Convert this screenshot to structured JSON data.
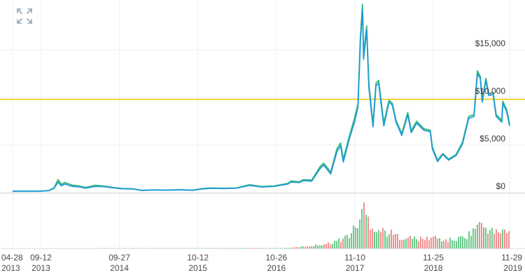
{
  "chart_data": {
    "type": "line",
    "title": "",
    "xlabel": "",
    "ylabel": "",
    "y_ticks": [
      {
        "value": 0,
        "label": "$0"
      },
      {
        "value": 5000,
        "label": "$5,000"
      },
      {
        "value": 10000,
        "label": "$10,000"
      },
      {
        "value": 15000,
        "label": "$15,000"
      }
    ],
    "ylim": [
      0,
      19500
    ],
    "x_range": [
      "2013-04-28",
      "2019-11-29"
    ],
    "x_ticks": [
      {
        "date": "2013-04-28",
        "label1": "04-28",
        "label2": "2013"
      },
      {
        "date": "2013-09-12",
        "label1": "09-12",
        "label2": "2013"
      },
      {
        "date": "2014-09-27",
        "label1": "09-27",
        "label2": "2014"
      },
      {
        "date": "2015-10-12",
        "label1": "10-12",
        "label2": "2015"
      },
      {
        "date": "2016-10-26",
        "label1": "10-26",
        "label2": "2016"
      },
      {
        "date": "2017-11-10",
        "label1": "11-10",
        "label2": "2017"
      },
      {
        "date": "2018-11-25",
        "label1": "11-25",
        "label2": "2018"
      },
      {
        "date": "2019-11-29",
        "label1": "11-29",
        "label2": "2019"
      }
    ],
    "reference_line": {
      "value": 9800,
      "color": "#f2d33b"
    },
    "grid": true,
    "series": [
      {
        "color": "#1e9bd7",
        "points": [
          [
            "2013-04-28",
            130
          ],
          [
            "2013-09-01",
            135
          ],
          [
            "2013-10-20",
            190
          ],
          [
            "2013-11-15",
            450
          ],
          [
            "2013-12-04",
            1100
          ],
          [
            "2013-12-20",
            700
          ],
          [
            "2014-01-05",
            900
          ],
          [
            "2014-02-10",
            650
          ],
          [
            "2014-03-15",
            600
          ],
          [
            "2014-04-15",
            450
          ],
          [
            "2014-06-01",
            650
          ],
          [
            "2014-07-15",
            620
          ],
          [
            "2014-09-01",
            480
          ],
          [
            "2014-10-15",
            390
          ],
          [
            "2014-12-01",
            370
          ],
          [
            "2015-01-15",
            210
          ],
          [
            "2015-03-15",
            270
          ],
          [
            "2015-05-15",
            240
          ],
          [
            "2015-07-15",
            280
          ],
          [
            "2015-09-15",
            230
          ],
          [
            "2015-11-05",
            380
          ],
          [
            "2015-12-15",
            440
          ],
          [
            "2016-02-15",
            420
          ],
          [
            "2016-04-15",
            450
          ],
          [
            "2016-06-18",
            750
          ],
          [
            "2016-08-15",
            580
          ],
          [
            "2016-10-15",
            640
          ],
          [
            "2016-12-20",
            880
          ],
          [
            "2017-01-04",
            1100
          ],
          [
            "2017-02-15",
            1050
          ],
          [
            "2017-03-05",
            1250
          ],
          [
            "2017-04-15",
            1200
          ],
          [
            "2017-05-25",
            2500
          ],
          [
            "2017-06-12",
            2900
          ],
          [
            "2017-07-16",
            1950
          ],
          [
            "2017-08-15",
            4300
          ],
          [
            "2017-09-02",
            4900
          ],
          [
            "2017-09-15",
            3200
          ],
          [
            "2017-10-15",
            5700
          ],
          [
            "2017-11-08",
            7400
          ],
          [
            "2017-11-25",
            9000
          ],
          [
            "2017-12-07",
            16000
          ],
          [
            "2017-12-17",
            19200
          ],
          [
            "2017-12-22",
            14000
          ],
          [
            "2018-01-06",
            17100
          ],
          [
            "2018-01-17",
            11000
          ],
          [
            "2018-02-06",
            6900
          ],
          [
            "2018-02-20",
            11200
          ],
          [
            "2018-03-05",
            11500
          ],
          [
            "2018-03-30",
            7000
          ],
          [
            "2018-04-24",
            9500
          ],
          [
            "2018-05-10",
            9200
          ],
          [
            "2018-05-28",
            7400
          ],
          [
            "2018-06-25",
            6000
          ],
          [
            "2018-07-24",
            8200
          ],
          [
            "2018-08-10",
            6300
          ],
          [
            "2018-09-05",
            7300
          ],
          [
            "2018-10-10",
            6550
          ],
          [
            "2018-11-10",
            6400
          ],
          [
            "2018-11-20",
            4600
          ],
          [
            "2018-12-15",
            3250
          ],
          [
            "2019-01-10",
            4000
          ],
          [
            "2019-02-07",
            3400
          ],
          [
            "2019-03-15",
            3900
          ],
          [
            "2019-04-15",
            5100
          ],
          [
            "2019-05-15",
            7800
          ],
          [
            "2019-06-10",
            8000
          ],
          [
            "2019-06-26",
            12500
          ],
          [
            "2019-07-10",
            12000
          ],
          [
            "2019-07-20",
            9500
          ],
          [
            "2019-08-06",
            11800
          ],
          [
            "2019-08-20",
            10200
          ],
          [
            "2019-09-10",
            10300
          ],
          [
            "2019-09-25",
            8000
          ],
          [
            "2019-10-22",
            7400
          ],
          [
            "2019-10-27",
            9400
          ],
          [
            "2019-11-15",
            8500
          ],
          [
            "2019-11-29",
            7000
          ]
        ]
      },
      {
        "color": "#3cba74",
        "points": [
          [
            "2013-04-28",
            130
          ],
          [
            "2013-09-01",
            140
          ],
          [
            "2013-10-20",
            200
          ],
          [
            "2013-11-15",
            500
          ],
          [
            "2013-12-04",
            1350
          ],
          [
            "2013-12-20",
            850
          ],
          [
            "2014-01-05",
            1050
          ],
          [
            "2014-02-10",
            780
          ],
          [
            "2014-03-15",
            700
          ],
          [
            "2014-04-15",
            520
          ],
          [
            "2014-06-01",
            760
          ],
          [
            "2014-07-15",
            680
          ],
          [
            "2014-09-01",
            520
          ],
          [
            "2014-10-15",
            420
          ],
          [
            "2014-12-01",
            390
          ],
          [
            "2015-01-15",
            230
          ],
          [
            "2015-03-15",
            290
          ],
          [
            "2015-05-15",
            250
          ],
          [
            "2015-07-15",
            300
          ],
          [
            "2015-09-15",
            245
          ],
          [
            "2015-11-05",
            420
          ],
          [
            "2015-12-15",
            480
          ],
          [
            "2016-02-15",
            450
          ],
          [
            "2016-04-15",
            480
          ],
          [
            "2016-06-18",
            820
          ],
          [
            "2016-08-15",
            630
          ],
          [
            "2016-10-15",
            690
          ],
          [
            "2016-12-20",
            960
          ],
          [
            "2017-01-04",
            1200
          ],
          [
            "2017-02-15",
            1130
          ],
          [
            "2017-03-05",
            1350
          ],
          [
            "2017-04-15",
            1300
          ],
          [
            "2017-05-25",
            2700
          ],
          [
            "2017-06-12",
            3100
          ],
          [
            "2017-07-16",
            2150
          ],
          [
            "2017-08-15",
            4600
          ],
          [
            "2017-09-02",
            5200
          ],
          [
            "2017-09-15",
            3500
          ],
          [
            "2017-10-15",
            6000
          ],
          [
            "2017-11-08",
            7800
          ],
          [
            "2017-11-25",
            9300
          ],
          [
            "2017-12-07",
            16500
          ],
          [
            "2017-12-17",
            19800
          ],
          [
            "2017-12-22",
            14600
          ],
          [
            "2018-01-06",
            17500
          ],
          [
            "2018-01-17",
            11400
          ],
          [
            "2018-02-06",
            7200
          ],
          [
            "2018-02-20",
            11500
          ],
          [
            "2018-03-05",
            11800
          ],
          [
            "2018-03-30",
            7300
          ],
          [
            "2018-04-24",
            9700
          ],
          [
            "2018-05-10",
            9400
          ],
          [
            "2018-05-28",
            7600
          ],
          [
            "2018-06-25",
            6200
          ],
          [
            "2018-07-24",
            8400
          ],
          [
            "2018-08-10",
            6500
          ],
          [
            "2018-09-05",
            7500
          ],
          [
            "2018-10-10",
            6700
          ],
          [
            "2018-11-10",
            6550
          ],
          [
            "2018-11-20",
            4800
          ],
          [
            "2018-12-15",
            3400
          ],
          [
            "2019-01-10",
            4100
          ],
          [
            "2019-02-07",
            3500
          ],
          [
            "2019-03-15",
            4000
          ],
          [
            "2019-04-15",
            5300
          ],
          [
            "2019-05-15",
            8000
          ],
          [
            "2019-06-10",
            8200
          ],
          [
            "2019-06-26",
            12800
          ],
          [
            "2019-07-10",
            12200
          ],
          [
            "2019-07-20",
            9700
          ],
          [
            "2019-08-06",
            12000
          ],
          [
            "2019-08-20",
            10400
          ],
          [
            "2019-09-10",
            10500
          ],
          [
            "2019-09-25",
            8200
          ],
          [
            "2019-10-22",
            7600
          ],
          [
            "2019-10-27",
            9600
          ],
          [
            "2019-11-15",
            8700
          ],
          [
            "2019-11-29",
            7200
          ]
        ]
      }
    ],
    "volume": {
      "colors": {
        "up": "#6cc98a",
        "down": "#ef8f8f"
      },
      "max": 100,
      "points": [
        [
          "2013-04-28",
          0
        ],
        [
          "2016-12-01",
          1
        ],
        [
          "2017-02-01",
          3
        ],
        [
          "2017-05-01",
          8
        ],
        [
          "2017-07-01",
          12
        ],
        [
          "2017-09-01",
          22
        ],
        [
          "2017-10-15",
          35
        ],
        [
          "2017-11-15",
          55
        ],
        [
          "2017-12-10",
          85
        ],
        [
          "2017-12-20",
          100
        ],
        [
          "2018-01-05",
          75
        ],
        [
          "2018-02-01",
          55
        ],
        [
          "2018-03-01",
          45
        ],
        [
          "2018-04-15",
          40
        ],
        [
          "2018-06-01",
          30
        ],
        [
          "2018-08-01",
          26
        ],
        [
          "2018-10-01",
          22
        ],
        [
          "2018-11-20",
          28
        ],
        [
          "2019-01-15",
          20
        ],
        [
          "2019-03-15",
          22
        ],
        [
          "2019-05-15",
          35
        ],
        [
          "2019-06-26",
          60
        ],
        [
          "2019-07-15",
          55
        ],
        [
          "2019-08-15",
          48
        ],
        [
          "2019-09-15",
          38
        ],
        [
          "2019-10-25",
          45
        ],
        [
          "2019-11-29",
          35
        ]
      ]
    }
  }
}
